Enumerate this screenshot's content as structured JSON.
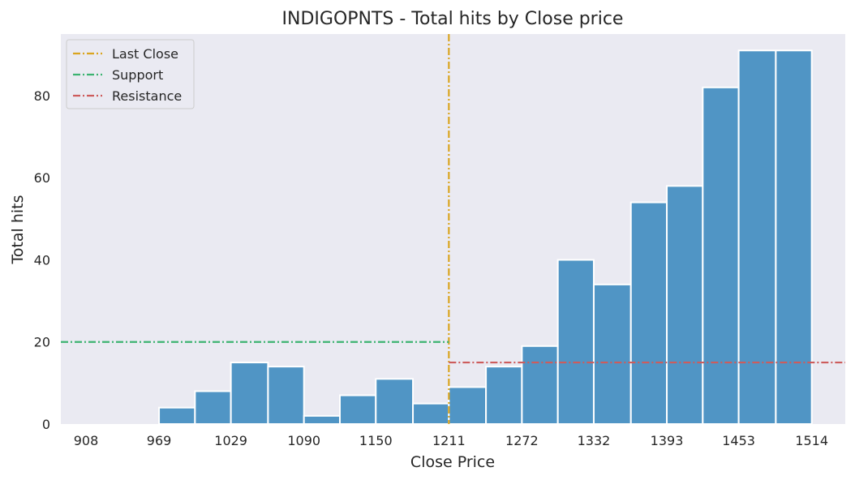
{
  "chart_data": {
    "type": "bar",
    "title": "INDIGOPNTS - Total hits by Close price",
    "xlabel": "Close Price",
    "ylabel": "Total hits",
    "xticks": [
      "908",
      "969",
      "1029",
      "1090",
      "1150",
      "1211",
      "1272",
      "1332",
      "1393",
      "1453",
      "1514"
    ],
    "yticks": [
      0,
      20,
      40,
      60,
      80
    ],
    "ylim": [
      0,
      95
    ],
    "grid": false,
    "legend_position": "top-left",
    "bins": [
      {
        "x0": 908,
        "x1": 938,
        "value": 0
      },
      {
        "x0": 938,
        "x1": 969,
        "value": 0
      },
      {
        "x0": 969,
        "x1": 999,
        "value": 4
      },
      {
        "x0": 999,
        "x1": 1029,
        "value": 8
      },
      {
        "x0": 1029,
        "x1": 1060,
        "value": 15
      },
      {
        "x0": 1060,
        "x1": 1090,
        "value": 14
      },
      {
        "x0": 1090,
        "x1": 1120,
        "value": 2
      },
      {
        "x0": 1120,
        "x1": 1150,
        "value": 7
      },
      {
        "x0": 1150,
        "x1": 1181,
        "value": 11
      },
      {
        "x0": 1181,
        "x1": 1211,
        "value": 5
      },
      {
        "x0": 1211,
        "x1": 1242,
        "value": 9
      },
      {
        "x0": 1242,
        "x1": 1272,
        "value": 14
      },
      {
        "x0": 1272,
        "x1": 1302,
        "value": 19
      },
      {
        "x0": 1302,
        "x1": 1332,
        "value": 40
      },
      {
        "x0": 1332,
        "x1": 1363,
        "value": 34
      },
      {
        "x0": 1363,
        "x1": 1393,
        "value": 54
      },
      {
        "x0": 1393,
        "x1": 1423,
        "value": 58
      },
      {
        "x0": 1423,
        "x1": 1453,
        "value": 82
      },
      {
        "x0": 1453,
        "x1": 1484,
        "value": 91
      },
      {
        "x0": 1484,
        "x1": 1514,
        "value": 91
      }
    ],
    "lines": [
      {
        "name": "Last Close",
        "kind": "vertical",
        "x": 1211,
        "color": "#DAA520"
      },
      {
        "name": "Support",
        "kind": "horizontal",
        "y": 20,
        "x_from": 887,
        "x_to": 1211,
        "color": "#3CB371"
      },
      {
        "name": "Resistance",
        "kind": "horizontal",
        "y": 15,
        "x_from": 1211,
        "x_to": 1542,
        "color": "#CD5C5C"
      }
    ],
    "bar_color": "#5095C5"
  }
}
